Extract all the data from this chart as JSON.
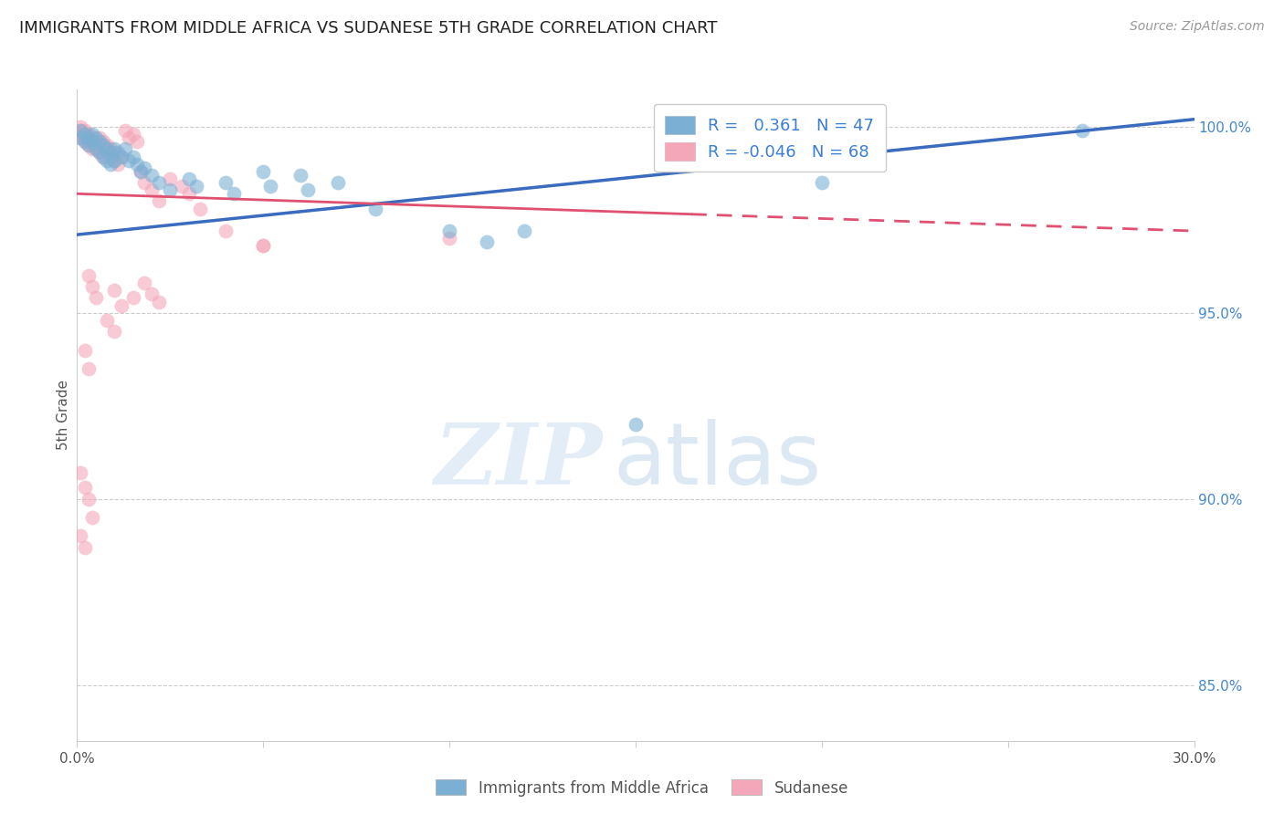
{
  "title": "IMMIGRANTS FROM MIDDLE AFRICA VS SUDANESE 5TH GRADE CORRELATION CHART",
  "source_text": "Source: ZipAtlas.com",
  "ylabel": "5th Grade",
  "xmin": 0.0,
  "xmax": 0.3,
  "ymin": 0.835,
  "ymax": 1.01,
  "yticks": [
    0.85,
    0.9,
    0.95,
    1.0
  ],
  "ytick_labels": [
    "85.0%",
    "90.0%",
    "95.0%",
    "100.0%"
  ],
  "xticks": [
    0.0,
    0.05,
    0.1,
    0.15,
    0.2,
    0.25,
    0.3
  ],
  "xtick_labels": [
    "0.0%",
    "",
    "",
    "",
    "",
    "",
    "30.0%"
  ],
  "blue_color": "#7bafd4",
  "pink_color": "#f4a7b9",
  "blue_line_color": "#3a6bbf",
  "pink_line_color": "#e05070",
  "legend_r_blue": "0.361",
  "legend_n_blue": "47",
  "legend_r_pink": "-0.046",
  "legend_n_pink": "68",
  "legend_label_blue": "Immigrants from Middle Africa",
  "legend_label_pink": "Sudanese",
  "watermark_zip": "ZIP",
  "watermark_atlas": "atlas",
  "blue_line_x0": 0.0,
  "blue_line_y0": 0.971,
  "blue_line_x1": 0.3,
  "blue_line_y1": 1.002,
  "pink_line_x0": 0.0,
  "pink_line_y0": 0.982,
  "pink_line_x1": 0.3,
  "pink_line_y1": 0.972,
  "pink_dash_split": 0.165,
  "blue_scatter": [
    [
      0.001,
      0.999
    ],
    [
      0.001,
      0.997
    ],
    [
      0.002,
      0.998
    ],
    [
      0.002,
      0.996
    ],
    [
      0.003,
      0.997
    ],
    [
      0.003,
      0.995
    ],
    [
      0.004,
      0.998
    ],
    [
      0.004,
      0.996
    ],
    [
      0.005,
      0.997
    ],
    [
      0.005,
      0.994
    ],
    [
      0.006,
      0.996
    ],
    [
      0.006,
      0.993
    ],
    [
      0.007,
      0.995
    ],
    [
      0.007,
      0.992
    ],
    [
      0.008,
      0.994
    ],
    [
      0.008,
      0.991
    ],
    [
      0.009,
      0.993
    ],
    [
      0.009,
      0.99
    ],
    [
      0.01,
      0.994
    ],
    [
      0.01,
      0.991
    ],
    [
      0.011,
      0.993
    ],
    [
      0.012,
      0.992
    ],
    [
      0.013,
      0.994
    ],
    [
      0.014,
      0.991
    ],
    [
      0.015,
      0.992
    ],
    [
      0.016,
      0.99
    ],
    [
      0.017,
      0.988
    ],
    [
      0.018,
      0.989
    ],
    [
      0.02,
      0.987
    ],
    [
      0.022,
      0.985
    ],
    [
      0.025,
      0.983
    ],
    [
      0.03,
      0.986
    ],
    [
      0.032,
      0.984
    ],
    [
      0.04,
      0.985
    ],
    [
      0.042,
      0.982
    ],
    [
      0.05,
      0.988
    ],
    [
      0.052,
      0.984
    ],
    [
      0.06,
      0.987
    ],
    [
      0.062,
      0.983
    ],
    [
      0.07,
      0.985
    ],
    [
      0.08,
      0.978
    ],
    [
      0.1,
      0.972
    ],
    [
      0.11,
      0.969
    ],
    [
      0.12,
      0.972
    ],
    [
      0.15,
      0.92
    ],
    [
      0.2,
      0.985
    ],
    [
      0.27,
      0.999
    ]
  ],
  "pink_scatter": [
    [
      0.001,
      1.0
    ],
    [
      0.001,
      0.999
    ],
    [
      0.001,
      0.998
    ],
    [
      0.001,
      0.997
    ],
    [
      0.002,
      0.999
    ],
    [
      0.002,
      0.998
    ],
    [
      0.002,
      0.997
    ],
    [
      0.002,
      0.996
    ],
    [
      0.003,
      0.998
    ],
    [
      0.003,
      0.997
    ],
    [
      0.003,
      0.996
    ],
    [
      0.003,
      0.995
    ],
    [
      0.004,
      0.997
    ],
    [
      0.004,
      0.996
    ],
    [
      0.004,
      0.995
    ],
    [
      0.004,
      0.994
    ],
    [
      0.005,
      0.996
    ],
    [
      0.005,
      0.995
    ],
    [
      0.005,
      0.994
    ],
    [
      0.006,
      0.997
    ],
    [
      0.006,
      0.995
    ],
    [
      0.006,
      0.993
    ],
    [
      0.007,
      0.996
    ],
    [
      0.007,
      0.994
    ],
    [
      0.007,
      0.992
    ],
    [
      0.008,
      0.995
    ],
    [
      0.008,
      0.993
    ],
    [
      0.009,
      0.994
    ],
    [
      0.009,
      0.992
    ],
    [
      0.01,
      0.993
    ],
    [
      0.01,
      0.991
    ],
    [
      0.011,
      0.99
    ],
    [
      0.012,
      0.992
    ],
    [
      0.013,
      0.999
    ],
    [
      0.014,
      0.997
    ],
    [
      0.015,
      0.998
    ],
    [
      0.016,
      0.996
    ],
    [
      0.017,
      0.988
    ],
    [
      0.018,
      0.985
    ],
    [
      0.02,
      0.983
    ],
    [
      0.022,
      0.98
    ],
    [
      0.025,
      0.986
    ],
    [
      0.028,
      0.984
    ],
    [
      0.03,
      0.982
    ],
    [
      0.033,
      0.978
    ],
    [
      0.04,
      0.972
    ],
    [
      0.05,
      0.968
    ],
    [
      0.01,
      0.956
    ],
    [
      0.012,
      0.952
    ],
    [
      0.015,
      0.954
    ],
    [
      0.018,
      0.958
    ],
    [
      0.02,
      0.955
    ],
    [
      0.022,
      0.953
    ],
    [
      0.008,
      0.948
    ],
    [
      0.01,
      0.945
    ],
    [
      0.003,
      0.96
    ],
    [
      0.004,
      0.957
    ],
    [
      0.005,
      0.954
    ],
    [
      0.002,
      0.94
    ],
    [
      0.003,
      0.935
    ],
    [
      0.001,
      0.907
    ],
    [
      0.002,
      0.903
    ],
    [
      0.001,
      0.89
    ],
    [
      0.002,
      0.887
    ],
    [
      0.003,
      0.9
    ],
    [
      0.004,
      0.895
    ],
    [
      0.1,
      0.97
    ],
    [
      0.05,
      0.968
    ]
  ]
}
